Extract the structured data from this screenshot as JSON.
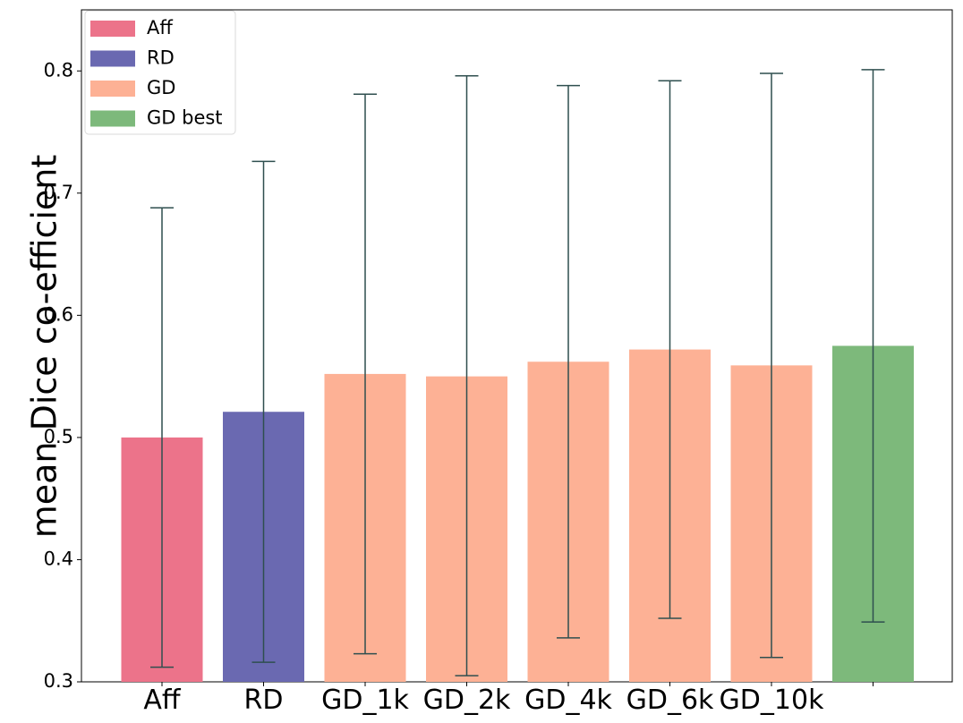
{
  "chart_data": {
    "type": "bar",
    "title": "",
    "xlabel": "",
    "ylabel": "mean Dice co-efficient",
    "ylim": [
      0.3,
      0.85
    ],
    "yticks": [
      0.3,
      0.4,
      0.5,
      0.6,
      0.7,
      0.8
    ],
    "ytick_labels": [
      "0.3",
      "0.4",
      "0.5",
      "0.6",
      "0.7",
      "0.8"
    ],
    "categories": [
      "Aff",
      "RD",
      "GD_1k",
      "GD_2k",
      "GD_4k",
      "GD_6k",
      "GD_10k",
      ""
    ],
    "values": [
      0.5,
      0.521,
      0.552,
      0.55,
      0.562,
      0.572,
      0.559,
      0.575
    ],
    "error_low": [
      0.312,
      0.316,
      0.323,
      0.305,
      0.336,
      0.352,
      0.32,
      0.349
    ],
    "error_high": [
      0.688,
      0.726,
      0.781,
      0.796,
      0.788,
      0.792,
      0.798,
      0.801
    ],
    "bar_groups": [
      "Aff",
      "RD",
      "GD",
      "GD",
      "GD",
      "GD",
      "GD",
      "GD best"
    ],
    "legend": [
      {
        "label": "Aff",
        "color": "#ec738a"
      },
      {
        "label": "RD",
        "color": "#6a69b1"
      },
      {
        "label": "GD",
        "color": "#fdb195"
      },
      {
        "label": "GD best",
        "color": "#7db97b"
      }
    ],
    "legend_position": "top-left",
    "errorbar_color": "#2f4f4f",
    "grid": false
  }
}
